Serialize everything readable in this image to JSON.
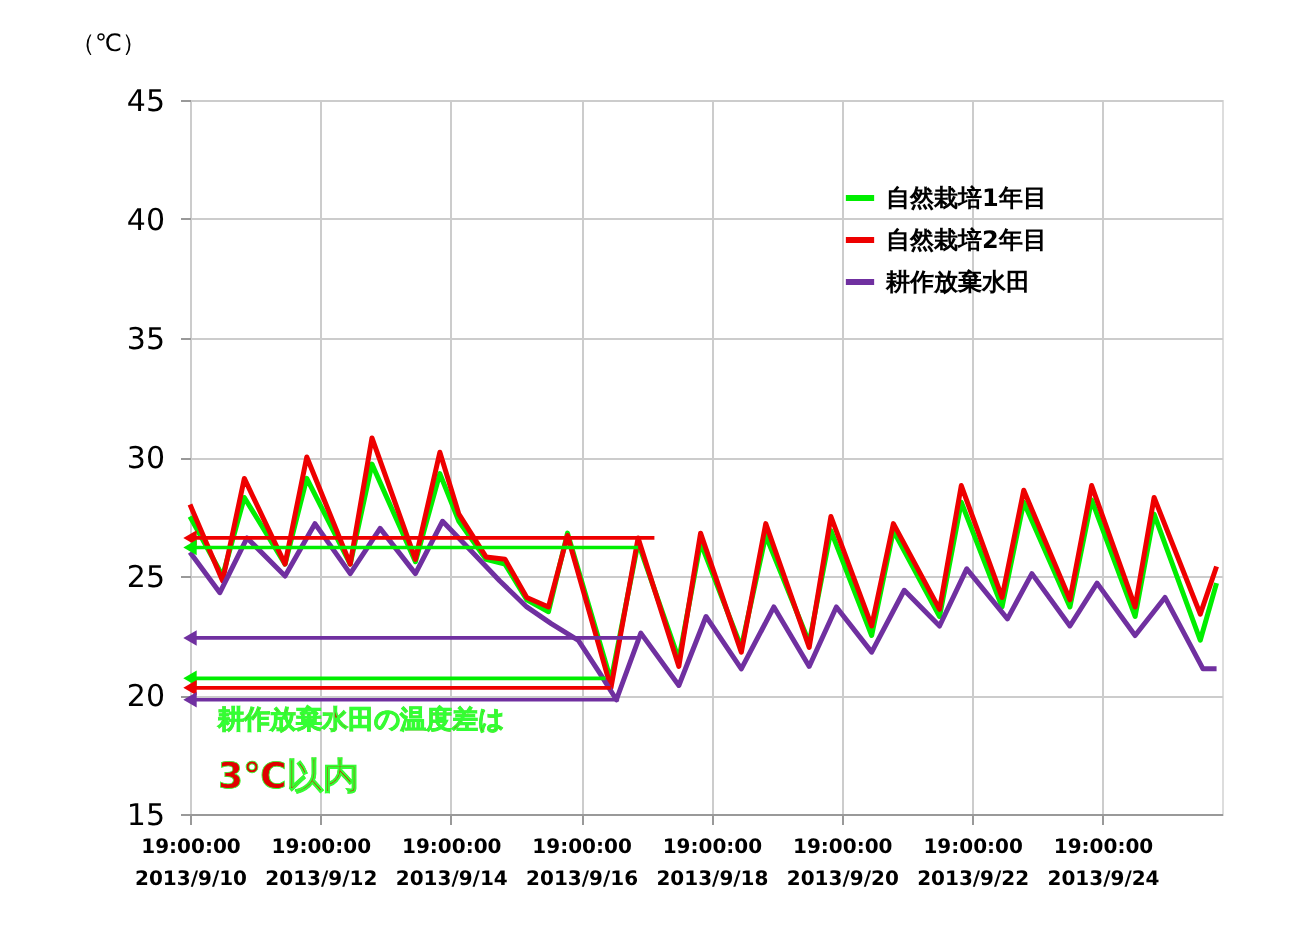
{
  "chart_data": {
    "type": "line",
    "ylabel": "（℃）",
    "xlim": [
      "2013-09-10T19:00",
      "2013-09-26T15:00"
    ],
    "xticks": [
      {
        "value": "2013-09-10T19:00",
        "label": "19:00:00\n2013/9/10"
      },
      {
        "value": "2013-09-12T19:00",
        "label": "19:00:00\n2013/9/12"
      },
      {
        "value": "2013-09-14T19:00",
        "label": "19:00:00\n2013/9/14"
      },
      {
        "value": "2013-09-16T19:00",
        "label": "19:00:00\n2013/9/16"
      },
      {
        "value": "2013-09-18T19:00",
        "label": "19:00:00\n2013/9/18"
      },
      {
        "value": "2013-09-20T19:00",
        "label": "19:00:00\n2013/9/20"
      },
      {
        "value": "2013-09-22T19:00",
        "label": "19:00:00\n2013/9/22"
      },
      {
        "value": "2013-09-24T19:00",
        "label": "19:00:00\n2013/9/24"
      }
    ],
    "ylim": [
      15,
      45
    ],
    "yticks": [
      15,
      20,
      25,
      30,
      35,
      40,
      45
    ],
    "grid": true,
    "legend": "top right",
    "line_style": "solid",
    "marker": "none",
    "x": [
      "2013-09-10T19:00",
      "2013-09-11T07:00",
      "2013-09-11T15:00",
      "2013-09-12T06:00",
      "2013-09-12T14:00",
      "2013-09-13T06:00",
      "2013-09-13T14:00",
      "2013-09-14T06:00",
      "2013-09-14T15:00",
      "2013-09-14T22:00",
      "2013-09-15T08:00",
      "2013-09-15T15:00",
      "2013-09-15T23:00",
      "2013-09-16T07:00",
      "2013-09-16T14:00",
      "2013-09-17T06:00",
      "2013-09-17T16:00",
      "2013-09-18T07:00",
      "2013-09-18T15:00",
      "2013-09-19T06:00",
      "2013-09-19T15:00",
      "2013-09-20T07:00",
      "2013-09-20T15:00",
      "2013-09-21T06:00",
      "2013-09-21T14:00",
      "2013-09-22T07:00",
      "2013-09-22T15:00",
      "2013-09-23T06:00",
      "2013-09-23T14:00",
      "2013-09-24T07:00",
      "2013-09-24T15:00",
      "2013-09-25T07:00",
      "2013-09-25T14:00",
      "2013-09-26T07:00",
      "2013-09-26T13:00"
    ],
    "series": [
      {
        "name": "自然栽培1年目",
        "color": "#00ee00",
        "values": [
          27.5,
          25.0,
          28.3,
          25.5,
          29.1,
          25.5,
          29.7,
          25.6,
          29.3,
          27.3,
          25.7,
          25.5,
          24.0,
          23.5,
          26.8,
          20.6,
          26.4,
          21.5,
          26.4,
          22.0,
          26.7,
          22.2,
          26.9,
          22.5,
          26.9,
          23.3,
          28.1,
          23.7,
          28.1,
          23.7,
          28.2,
          23.3,
          27.6,
          22.3,
          24.7
        ]
      },
      {
        "name": "自然栽培2年目",
        "color": "#ee0000",
        "values": [
          28.0,
          24.8,
          29.1,
          25.5,
          30.0,
          25.5,
          30.8,
          25.7,
          30.2,
          27.6,
          25.8,
          25.7,
          24.1,
          23.7,
          26.7,
          20.3,
          26.6,
          21.2,
          26.8,
          21.8,
          27.2,
          22.0,
          27.5,
          22.9,
          27.2,
          23.6,
          28.8,
          24.1,
          28.6,
          24.0,
          28.8,
          23.7,
          28.3,
          23.4,
          25.4
        ]
      },
      {
        "name": "耕作放棄水田",
        "color": "#7030a0",
        "x": [
          "2013-09-10T19:00",
          "2013-09-11T06:00",
          "2013-09-11T16:00",
          "2013-09-12T06:00",
          "2013-09-12T17:00",
          "2013-09-13T06:00",
          "2013-09-13T17:00",
          "2013-09-14T06:00",
          "2013-09-14T16:00",
          "2013-09-15T03:00",
          "2013-09-15T13:00",
          "2013-09-15T23:00",
          "2013-09-16T08:00",
          "2013-09-16T18:00",
          "2013-09-17T02:00",
          "2013-09-17T08:00",
          "2013-09-17T17:00",
          "2013-09-18T07:00",
          "2013-09-18T17:00",
          "2013-09-19T06:00",
          "2013-09-19T18:00",
          "2013-09-20T07:00",
          "2013-09-20T17:00",
          "2013-09-21T06:00",
          "2013-09-21T18:00",
          "2013-09-22T07:00",
          "2013-09-22T17:00",
          "2013-09-23T08:00",
          "2013-09-23T17:00",
          "2013-09-24T07:00",
          "2013-09-24T17:00",
          "2013-09-25T07:00",
          "2013-09-25T18:00",
          "2013-09-26T08:00",
          "2013-09-26T13:00"
        ],
        "values": [
          26.0,
          24.3,
          26.6,
          25.0,
          27.2,
          25.1,
          27.0,
          25.1,
          27.3,
          26.0,
          24.8,
          23.7,
          23.0,
          22.3,
          20.9,
          19.8,
          22.6,
          20.4,
          23.3,
          21.1,
          23.7,
          21.2,
          23.7,
          21.8,
          24.4,
          22.9,
          25.3,
          23.2,
          25.1,
          22.9,
          24.7,
          22.5,
          24.1,
          21.1,
          21.1
        ]
      },
      {
        "type": "line",
        "marker": "triangle",
        "color": "#ee0000",
        "x": [
          "2013-09-10T19:00",
          "2013-09-17T22:00"
        ],
        "values": [
          26.6,
          26.6
        ]
      },
      {
        "type": "line",
        "marker": "triangle",
        "color": "#00ee00",
        "x": [
          "2013-09-10T19:00",
          "2013-09-17T16:00"
        ],
        "values": [
          26.2,
          26.2
        ]
      },
      {
        "type": "line",
        "marker": "triangle",
        "color": "#7030a0",
        "x": [
          "2013-09-10T19:00",
          "2013-09-17T16:00"
        ],
        "values": [
          22.4,
          22.4
        ]
      },
      {
        "type": "line",
        "marker": "triangle",
        "color": "#00ee00",
        "x": [
          "2013-09-10T19:00",
          "2013-09-17T04:00"
        ],
        "values": [
          20.7,
          20.7
        ]
      },
      {
        "type": "line",
        "marker": "triangle",
        "color": "#ee0000",
        "x": [
          "2013-09-10T19:00",
          "2013-09-17T06:00"
        ],
        "values": [
          20.3,
          20.3
        ]
      },
      {
        "type": "line",
        "marker": "triangle",
        "color": "#7030a0",
        "x": [
          "2013-09-10T19:00",
          "2013-09-17T09:00"
        ],
        "values": [
          19.8,
          19.8
        ]
      }
    ],
    "annotations": [
      "耕作放棄水田の温度差は\n3℃以内"
    ]
  }
}
